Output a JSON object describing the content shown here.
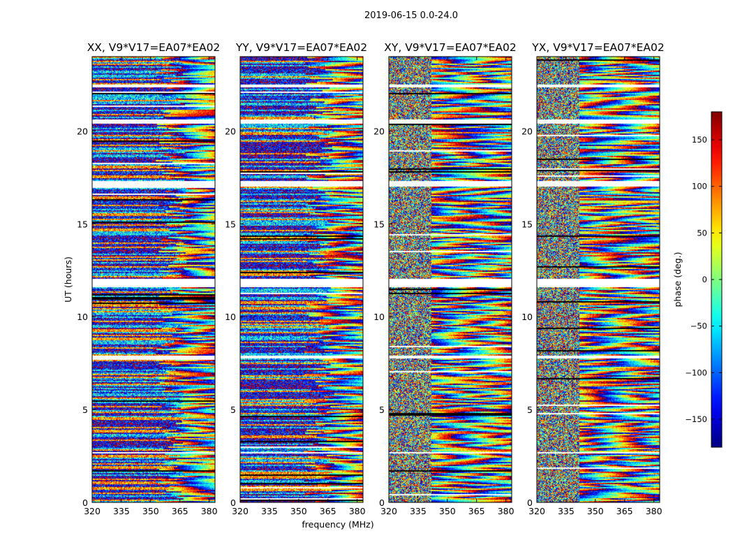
{
  "chart_data": {
    "type": "heatmap",
    "suptitle": "2019-06-15 0.0-24.0",
    "xlabel": "frequency (MHz)",
    "ylabel": "UT (hours)",
    "xlim": [
      320,
      383
    ],
    "ylim": [
      0,
      24
    ],
    "xticks": [
      320,
      335,
      350,
      365,
      380
    ],
    "yticks": [
      0,
      5,
      10,
      15,
      20
    ],
    "panels": [
      {
        "title": "XX, V9*V17=EA07*EA02",
        "pol": "XX"
      },
      {
        "title": "YY, V9*V17=EA07*EA02",
        "pol": "YY"
      },
      {
        "title": "XY, V9*V17=EA07*EA02",
        "pol": "XY"
      },
      {
        "title": "YX, V9*V17=EA07*EA02",
        "pol": "YX"
      }
    ],
    "colorbar": {
      "label": "phase (deg.)",
      "range": [
        -180,
        180
      ],
      "ticks": [
        -150,
        -100,
        -50,
        0,
        50,
        100,
        150
      ],
      "colormap": "jet"
    },
    "gaps_hours": [
      [
        2.65,
        2.75
      ],
      [
        7.82,
        7.92
      ],
      [
        11.65,
        12.05
      ],
      [
        17.05,
        17.35
      ],
      [
        20.45,
        20.65
      ],
      [
        22.35,
        22.55
      ]
    ]
  }
}
